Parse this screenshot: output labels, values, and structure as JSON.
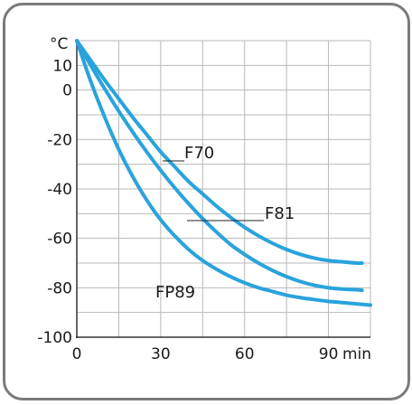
{
  "chart_data": {
    "type": "line",
    "ylabel": "°C",
    "xlabel": "min",
    "xlim": [
      0,
      105
    ],
    "ylim": [
      -100,
      20
    ],
    "x_ticks": [
      0,
      30,
      60,
      90
    ],
    "y_ticks": [
      10,
      0,
      -20,
      -40,
      -60,
      -80,
      -100
    ],
    "grid": true,
    "line_color": "#29a3dc",
    "series": [
      {
        "name": "F70",
        "x": [
          0,
          5,
          10,
          15,
          20,
          25,
          30,
          35,
          40,
          45,
          50,
          55,
          60,
          65,
          70,
          75,
          80,
          85,
          90,
          95,
          100,
          102
        ],
        "y": [
          20,
          12,
          4,
          -3.5,
          -11,
          -18,
          -25,
          -31,
          -37,
          -42,
          -47,
          -51.5,
          -55.5,
          -59,
          -62,
          -64.5,
          -66.5,
          -68,
          -69,
          -69.5,
          -70,
          -70
        ]
      },
      {
        "name": "F81",
        "x": [
          0,
          5,
          10,
          15,
          20,
          25,
          30,
          35,
          40,
          45,
          50,
          55,
          60,
          65,
          70,
          75,
          80,
          85,
          90,
          95,
          100,
          102
        ],
        "y": [
          20,
          10,
          0.5,
          -8.5,
          -17,
          -25,
          -32.5,
          -39.5,
          -46,
          -52,
          -57.5,
          -62.5,
          -66.5,
          -70,
          -73,
          -75.5,
          -77.5,
          -79,
          -80,
          -80.5,
          -80.8,
          -81
        ]
      },
      {
        "name": "FP89",
        "x": [
          0,
          5,
          10,
          15,
          20,
          25,
          30,
          35,
          40,
          45,
          50,
          55,
          60,
          65,
          70,
          75,
          80,
          85,
          90,
          95,
          100,
          105
        ],
        "y": [
          20,
          3.5,
          -11,
          -24,
          -35,
          -44.5,
          -52.5,
          -59,
          -64.5,
          -69,
          -72.5,
          -75.5,
          -78,
          -80,
          -81.5,
          -83,
          -84,
          -84.8,
          -85.5,
          -86,
          -86.5,
          -87
        ]
      }
    ],
    "annotations": [
      {
        "text": "F70",
        "series": "F70"
      },
      {
        "text": "F81",
        "series": "F81"
      },
      {
        "text": "FP89",
        "series": "FP89"
      }
    ]
  }
}
